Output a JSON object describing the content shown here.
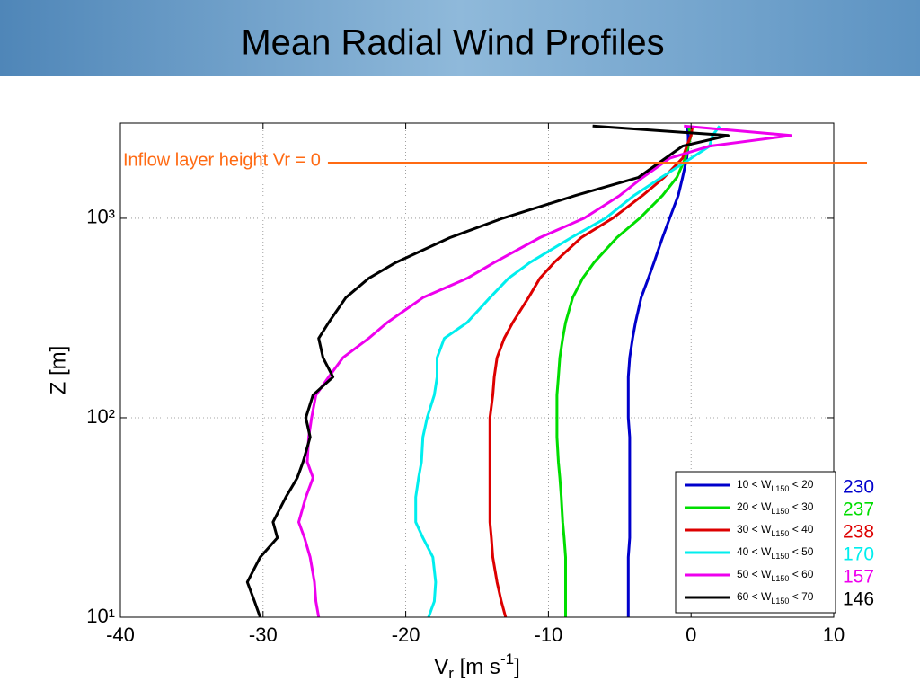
{
  "chart_data": {
    "type": "line",
    "title": "Mean Radial Wind Profiles",
    "xlabel": "Vr [m s-1]",
    "ylabel": "Z [m]",
    "xlim": [
      -40,
      10
    ],
    "xticks": [
      -40,
      -30,
      -20,
      -10,
      0,
      10
    ],
    "ylim": [
      10,
      3000
    ],
    "yticks": [
      {
        "value": 10,
        "label": "10¹"
      },
      {
        "value": 100,
        "label": "10²"
      },
      {
        "value": 1000,
        "label": "10³"
      }
    ],
    "log_y": true,
    "grid": true,
    "legend": "lower right",
    "hline": {
      "value": 1900,
      "label": "Inflow layer height Vr = 0",
      "color": "#ff6a13"
    },
    "y": [
      10,
      12,
      15,
      20,
      25,
      30,
      40,
      50,
      60,
      80,
      100,
      130,
      160,
      200,
      250,
      300,
      400,
      500,
      600,
      800,
      1000,
      1300,
      1600,
      2000,
      2300,
      2600,
      2900
    ],
    "series": [
      {
        "name": "10 < WL150 < 20",
        "count": "230",
        "color": "#0000cc",
        "values": [
          -4.4,
          -4.4,
          -4.4,
          -4.4,
          -4.3,
          -4.3,
          -4.3,
          -4.3,
          -4.3,
          -4.3,
          -4.4,
          -4.4,
          -4.4,
          -4.3,
          -4.1,
          -3.9,
          -3.5,
          -3.0,
          -2.6,
          -2.0,
          -1.5,
          -0.9,
          -0.6,
          -0.3,
          -0.2,
          -0.2,
          -0.3
        ]
      },
      {
        "name": "20 < WL150 < 30",
        "count": "237",
        "color": "#00dd00",
        "values": [
          -8.8,
          -8.8,
          -8.8,
          -8.8,
          -8.9,
          -9.0,
          -9.1,
          -9.2,
          -9.3,
          -9.4,
          -9.4,
          -9.4,
          -9.3,
          -9.2,
          -9.0,
          -8.8,
          -8.3,
          -7.6,
          -6.8,
          -5.2,
          -3.6,
          -2.0,
          -1.0,
          -0.4,
          -0.2,
          0,
          -0.2
        ]
      },
      {
        "name": "30 < WL150 < 40",
        "count": "238",
        "color": "#dd0000",
        "values": [
          -13.0,
          -13.3,
          -13.6,
          -13.9,
          -14.0,
          -14.1,
          -14.1,
          -14.1,
          -14.1,
          -14.1,
          -14.1,
          -13.9,
          -13.8,
          -13.6,
          -13.1,
          -12.5,
          -11.4,
          -10.6,
          -9.6,
          -7.7,
          -5.5,
          -3.4,
          -1.9,
          -0.6,
          -0.3,
          0,
          0.1
        ]
      },
      {
        "name": "40 < WL150 < 50",
        "count": "170",
        "color": "#00eeee",
        "values": [
          -18.4,
          -18.0,
          -17.9,
          -18.1,
          -18.8,
          -19.3,
          -19.3,
          -19.1,
          -18.9,
          -18.8,
          -18.5,
          -18.0,
          -17.8,
          -17.8,
          -17.3,
          -15.7,
          -14.1,
          -12.8,
          -11.3,
          -8.4,
          -6.0,
          -4.0,
          -2.1,
          0,
          1.3,
          1.5,
          2.0
        ]
      },
      {
        "name": "50 < WL150 < 60",
        "count": "157",
        "color": "#ee00ee",
        "values": [
          -26.1,
          -26.3,
          -26.4,
          -26.7,
          -27.1,
          -27.5,
          -27.0,
          -26.5,
          -26.9,
          -26.8,
          -26.6,
          -26.3,
          -25.4,
          -24.4,
          -22.6,
          -21.3,
          -18.8,
          -15.7,
          -13.8,
          -10.6,
          -7.5,
          -5.0,
          -3.4,
          -1.5,
          1.3,
          7.0,
          -0.5
        ]
      },
      {
        "name": "60 < WL150 < 70",
        "count": "146",
        "color": "#000000",
        "values": [
          -30.2,
          -30.6,
          -31.1,
          -30.2,
          -29.0,
          -29.3,
          -28.4,
          -27.6,
          -27.2,
          -26.7,
          -27.0,
          -26.5,
          -25.1,
          -25.8,
          -26.1,
          -25.4,
          -24.2,
          -22.6,
          -20.7,
          -16.9,
          -13.2,
          -8.1,
          -3.7,
          -1.8,
          -0.6,
          2.6,
          -6.9
        ]
      }
    ]
  }
}
